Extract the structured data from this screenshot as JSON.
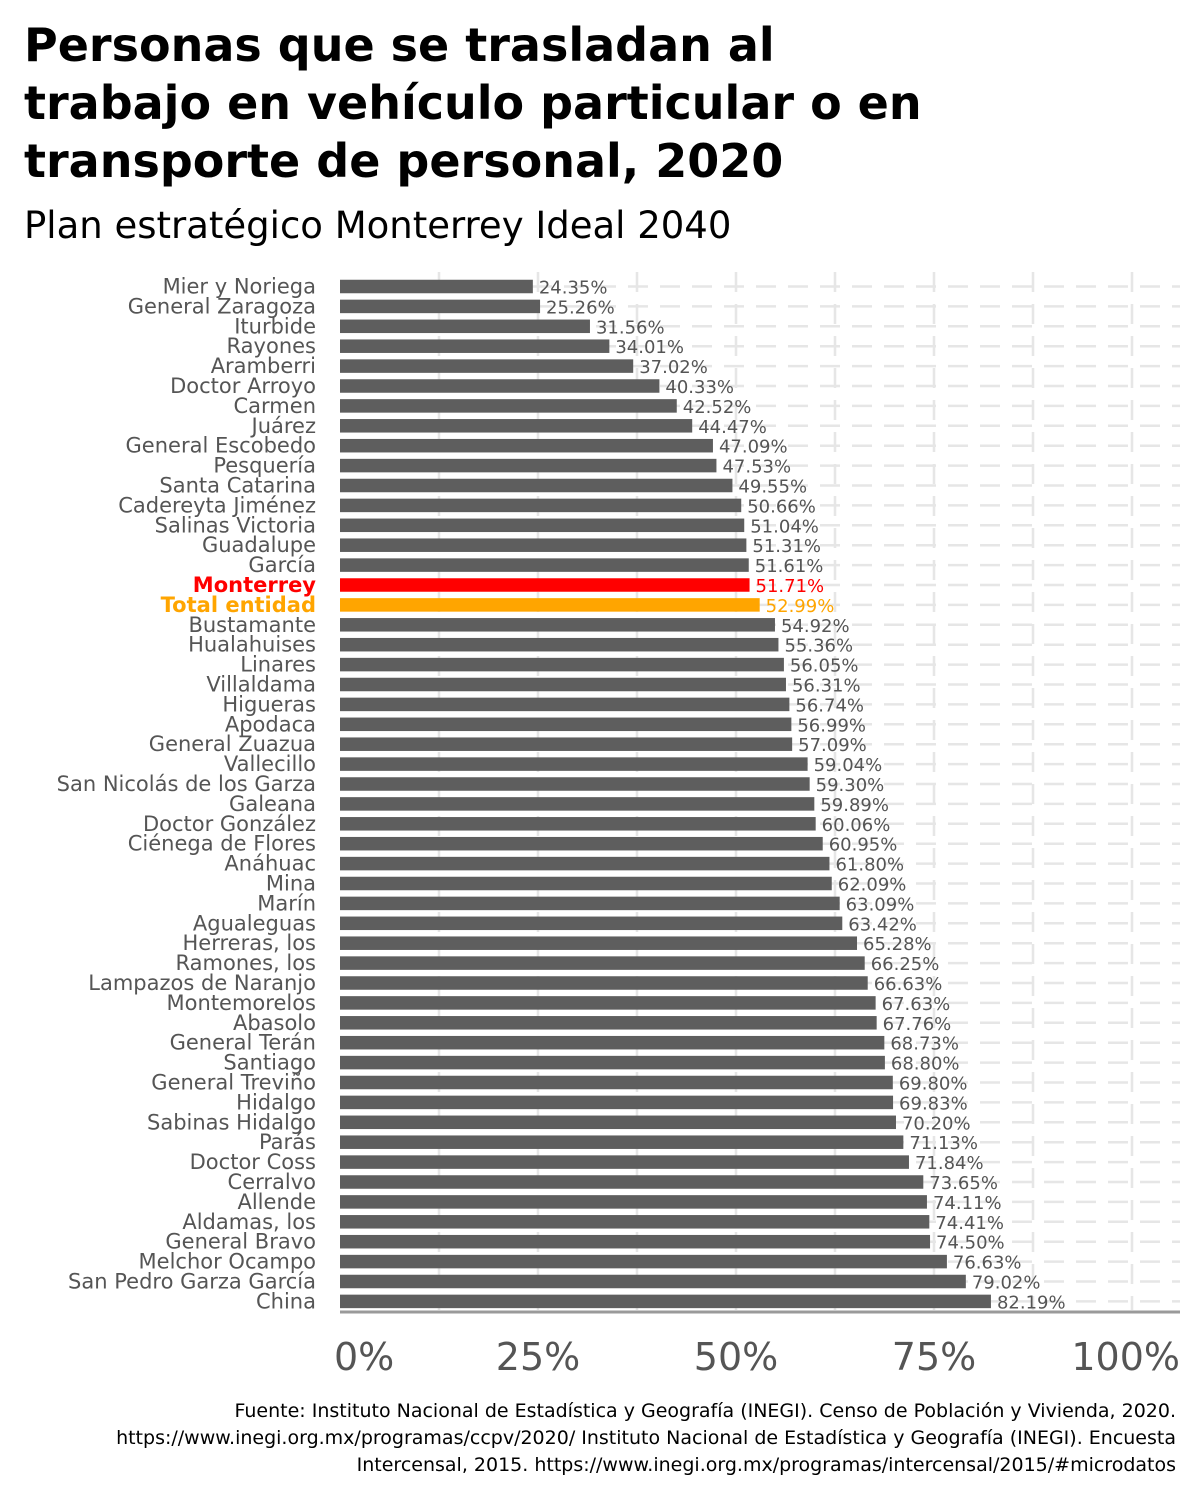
{
  "title": "Personas que se trasladan al\ntrabajo en vehículo particular o en\ntransporte de personal, 2020",
  "subtitle": "Plan estratégico Monterrey Ideal 2040",
  "caption": [
    "Fuente: Instituto Nacional de Estadística y Geografía (INEGI). Censo de Población y Vivienda, 2020.",
    "https://www.inegi.org.mx/programas/ccpv/2020/ Instituto Nacional de Estadística y Geografía (INEGI). Encuesta",
    "Intercensal, 2015. https://www.inegi.org.mx/programas/intercensal/2015/#microdatos"
  ],
  "colors": {
    "bar": "#5e5e5e",
    "highlight_monterrey": "#ff0000",
    "highlight_total": "#ffa500",
    "label": "#555555",
    "grid": "#e6e6e6",
    "axis": "#9a9a9a"
  },
  "chart_data": {
    "type": "bar",
    "orientation": "horizontal",
    "title": "Personas que se trasladan al trabajo en vehículo particular o en transporte de personal, 2020",
    "subtitle": "Plan estratégico Monterrey Ideal 2040",
    "xlabel": "",
    "ylabel": "",
    "xlim": [
      0,
      100
    ],
    "x_ticks": [
      "0%",
      "25%",
      "50%",
      "75%",
      "100%"
    ],
    "x_tick_values": [
      0,
      25,
      50,
      75,
      100
    ],
    "grid": true,
    "categories": [
      "Mier y Noriega",
      "General Zaragoza",
      "Iturbide",
      "Rayones",
      "Aramberri",
      "Doctor Arroyo",
      "Carmen",
      "Juárez",
      "General Escobedo",
      "Pesquería",
      "Santa Catarina",
      "Cadereyta Jiménez",
      "Salinas Victoria",
      "Guadalupe",
      "García",
      "Monterrey",
      "Total entidad",
      "Bustamante",
      "Hualahuises",
      "Linares",
      "Villaldama",
      "Higueras",
      "Apodaca",
      "General Zuazua",
      "Vallecillo",
      "San Nicolás de los Garza",
      "Galeana",
      "Doctor González",
      "Ciénega de Flores",
      "Anáhuac",
      "Mina",
      "Marín",
      "Agualeguas",
      "Herreras, los",
      "Ramones, los",
      "Lampazos de Naranjo",
      "Montemorelos",
      "Abasolo",
      "General Terán",
      "Santiago",
      "General Treviño",
      "Hidalgo",
      "Sabinas Hidalgo",
      "Parás",
      "Doctor Coss",
      "Cerralvo",
      "Allende",
      "Aldamas, los",
      "General Bravo",
      "Melchor Ocampo",
      "San Pedro Garza García",
      "China"
    ],
    "values": [
      24.35,
      25.26,
      31.56,
      34.01,
      37.02,
      40.33,
      42.52,
      44.47,
      47.09,
      47.53,
      49.55,
      50.66,
      51.04,
      51.31,
      51.61,
      51.71,
      52.99,
      54.92,
      55.36,
      56.05,
      56.31,
      56.74,
      56.99,
      57.09,
      59.04,
      59.3,
      59.89,
      60.06,
      60.95,
      61.8,
      62.09,
      63.09,
      63.42,
      65.28,
      66.25,
      66.63,
      67.63,
      67.76,
      68.73,
      68.8,
      69.8,
      69.83,
      70.2,
      71.13,
      71.84,
      73.65,
      74.11,
      74.41,
      74.5,
      76.63,
      79.02,
      82.19
    ],
    "value_labels": [
      "24.35%",
      "25.26%",
      "31.56%",
      "34.01%",
      "37.02%",
      "40.33%",
      "42.52%",
      "44.47%",
      "47.09%",
      "47.53%",
      "49.55%",
      "50.66%",
      "51.04%",
      "51.31%",
      "51.61%",
      "51.71%",
      "52.99%",
      "54.92%",
      "55.36%",
      "56.05%",
      "56.31%",
      "56.74%",
      "56.99%",
      "57.09%",
      "59.04%",
      "59.30%",
      "59.89%",
      "60.06%",
      "60.95%",
      "61.80%",
      "62.09%",
      "63.09%",
      "63.42%",
      "65.28%",
      "66.25%",
      "66.63%",
      "67.63%",
      "67.76%",
      "68.73%",
      "68.80%",
      "69.80%",
      "69.83%",
      "70.20%",
      "71.13%",
      "71.84%",
      "73.65%",
      "74.11%",
      "74.41%",
      "74.50%",
      "76.63%",
      "79.02%",
      "82.19%"
    ],
    "highlights": {
      "Monterrey": "#ff0000",
      "Total entidad": "#ffa500"
    }
  }
}
